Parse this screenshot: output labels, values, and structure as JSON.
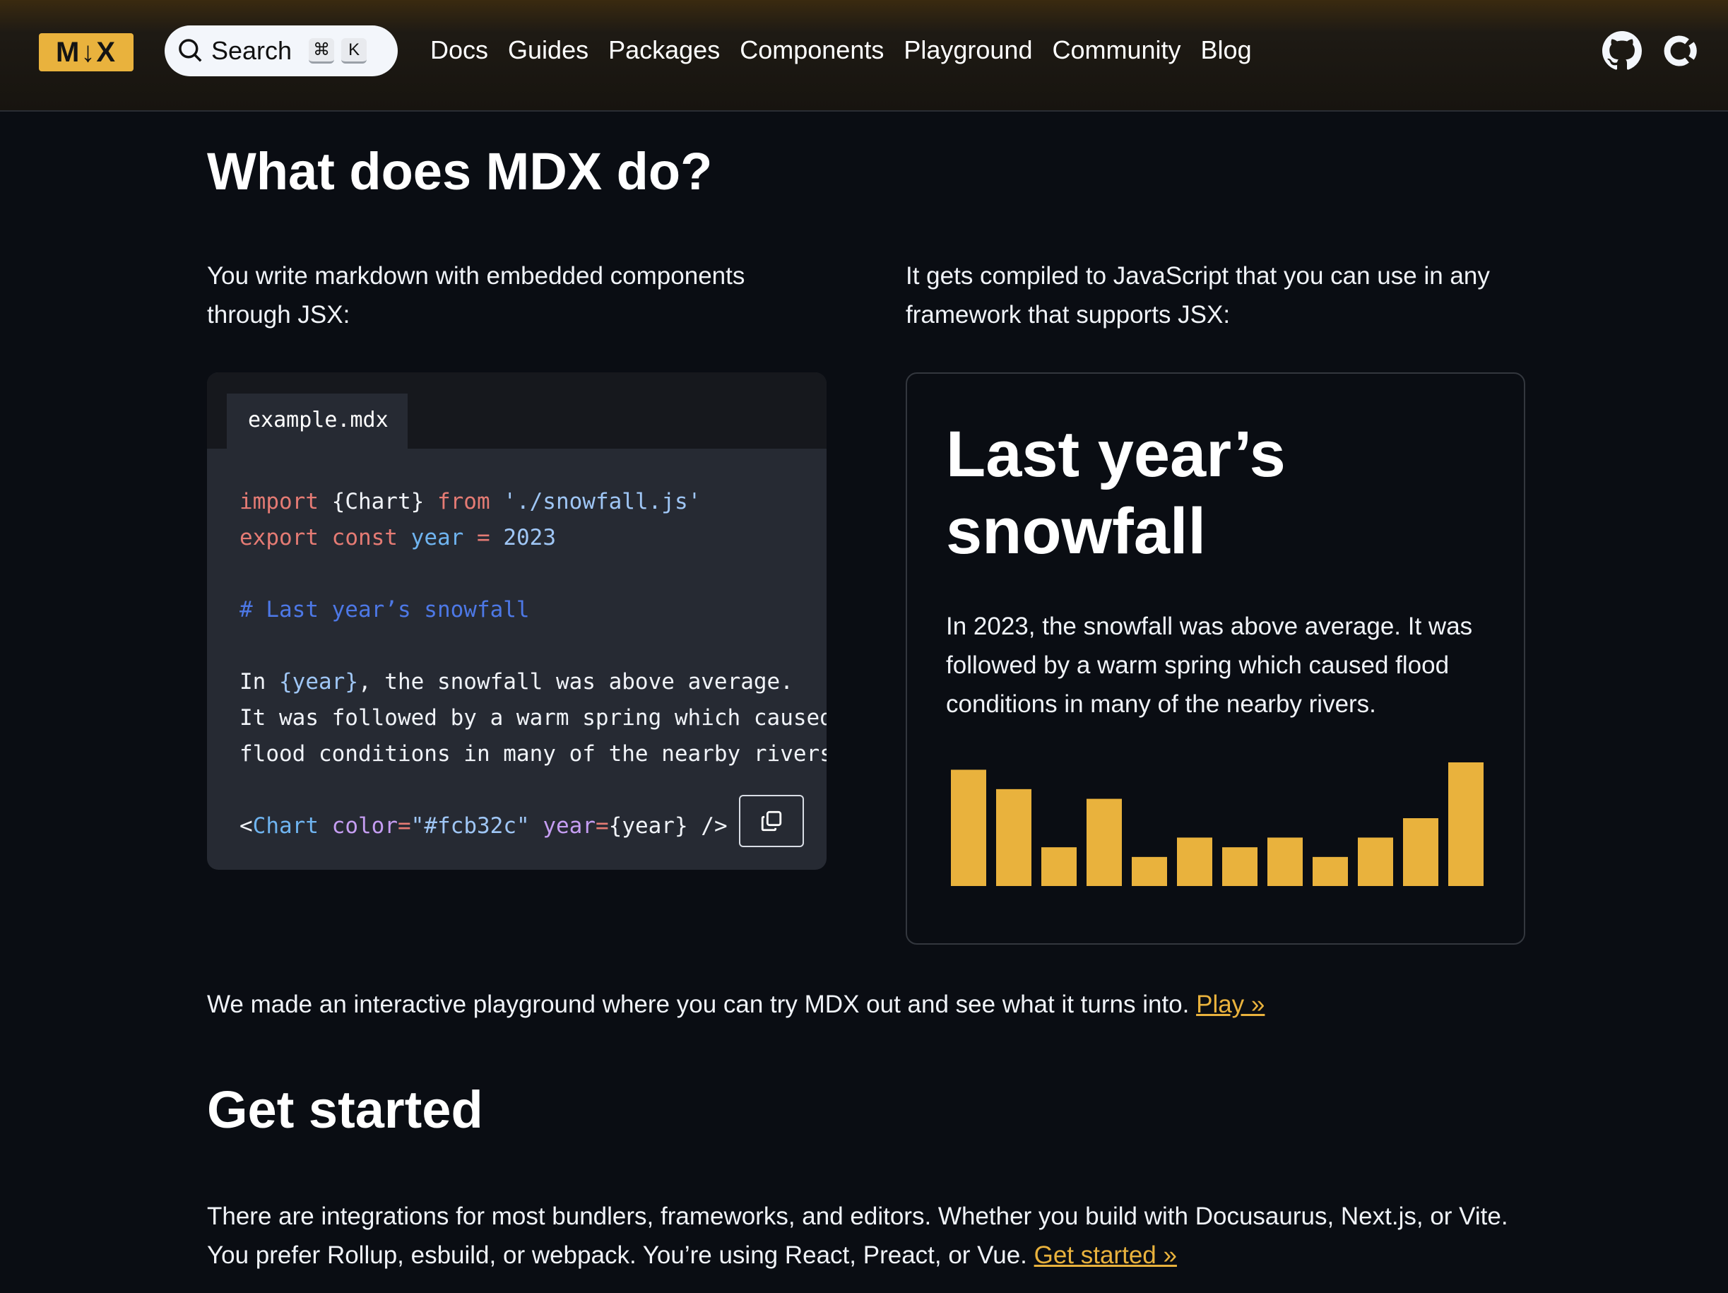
{
  "header": {
    "logo": "M↓X",
    "search_label": "Search",
    "shortcut_cmd": "⌘",
    "shortcut_key": "K",
    "nav": [
      "Docs",
      "Guides",
      "Packages",
      "Components",
      "Playground",
      "Community",
      "Blog"
    ],
    "icons": [
      "github-icon",
      "opencollective-icon"
    ]
  },
  "section1": {
    "title": "What does MDX do?",
    "left_text": "You write markdown with embedded components through JSX:",
    "right_text": "It gets compiled to JavaScript that you can use in any framework that supports JSX:"
  },
  "code": {
    "filename": "example.mdx",
    "l1": [
      "import",
      "{Chart}",
      "from",
      "'./snowfall.js'"
    ],
    "l2": [
      "export",
      "const",
      "year",
      "=",
      "2023"
    ],
    "l3": "# Last year’s snowfall",
    "l4": [
      "In ",
      "{year}",
      ", the snowfall was above average."
    ],
    "l5": "It was followed by a warm spring which caused",
    "l6": "flood conditions in many of the nearby rivers.",
    "l7": [
      "<",
      "Chart",
      "color",
      "=",
      "\"#fcb32c\"",
      "year",
      "=",
      "{year} />"
    ]
  },
  "preview": {
    "title": "Last year’s snowfall",
    "text": "In 2023, the snowfall was above average. It was followed by a warm spring which caused flood conditions in many of the nearby rivers."
  },
  "chart_data": {
    "type": "bar",
    "values": [
      12,
      10,
      4,
      9,
      3,
      5,
      4,
      5,
      3,
      5,
      7,
      14
    ],
    "color": "#e9b23d",
    "grid": false
  },
  "playground": {
    "text": "We made an interactive playground where you can try MDX out and see what it turns into. ",
    "link": "Play »"
  },
  "section2": {
    "title": "Get started",
    "text": "There are integrations for most bundlers, frameworks, and editors. Whether you build with Docusaurus, Next.js, or Vite. You prefer Rollup, esbuild, or webpack. You’re using React, Preact, or Vue. ",
    "link": "Get started »"
  }
}
